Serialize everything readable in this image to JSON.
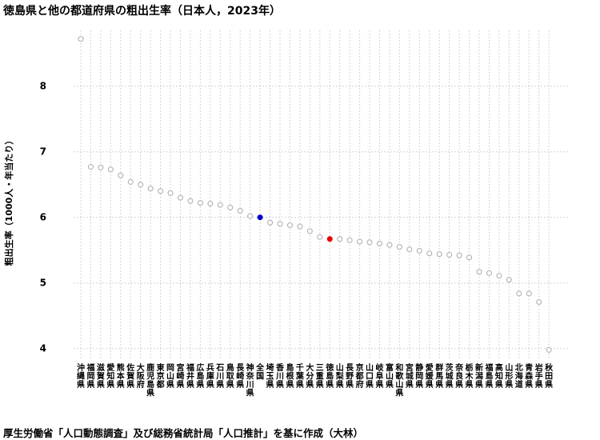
{
  "chart_data": {
    "type": "scatter",
    "title": "徳島県と他の都道府県の粗出生率（日本人，2023年）",
    "ylabel": "粗出生率（1000人・年当たり）",
    "xlabel": "",
    "ylim": [
      3.85,
      8.85
    ],
    "yticks": [
      "4",
      "5",
      "6",
      "7",
      "8"
    ],
    "grid": true,
    "categories": [
      "沖縄県",
      "福岡県",
      "滋賀県",
      "愛知県",
      "熊本県",
      "佐賀県",
      "大阪府",
      "鹿児島県",
      "東京都",
      "岡山県",
      "宮崎県",
      "福井県",
      "広島県",
      "兵庫県",
      "石川県",
      "鳥取県",
      "長崎県",
      "神奈川県",
      "全国",
      "埼玉県",
      "香川県",
      "島根県",
      "千葉県",
      "大分県",
      "三重県",
      "徳島県",
      "山梨県",
      "長野県",
      "京都府",
      "山口県",
      "岐阜県",
      "富山県",
      "和歌山県",
      "宮城県",
      "静岡県",
      "愛媛県",
      "群馬県",
      "茨城県",
      "奈良県",
      "栃木県",
      "新潟県",
      "福島県",
      "高知県",
      "山形県",
      "北海道",
      "青森県",
      "岩手県",
      "秋田県"
    ],
    "values": [
      8.72,
      6.77,
      6.76,
      6.73,
      6.64,
      6.54,
      6.5,
      6.44,
      6.4,
      6.37,
      6.3,
      6.25,
      6.22,
      6.21,
      6.19,
      6.15,
      6.1,
      6.02,
      6.0,
      5.92,
      5.9,
      5.88,
      5.86,
      5.79,
      5.7,
      5.67,
      5.67,
      5.65,
      5.63,
      5.62,
      5.6,
      5.58,
      5.55,
      5.51,
      5.49,
      5.45,
      5.44,
      5.43,
      5.42,
      5.39,
      5.17,
      5.15,
      5.11,
      5.05,
      4.84,
      4.84,
      4.71,
      3.98
    ],
    "highlights": {
      "全国": "#0000cc",
      "徳島県": "#ee0000"
    },
    "point_color": "#aaaaaa"
  },
  "source_note": "厚生労働省「人口動態調査」及び総務省統計局「人口推計」を基に作成（大林）"
}
